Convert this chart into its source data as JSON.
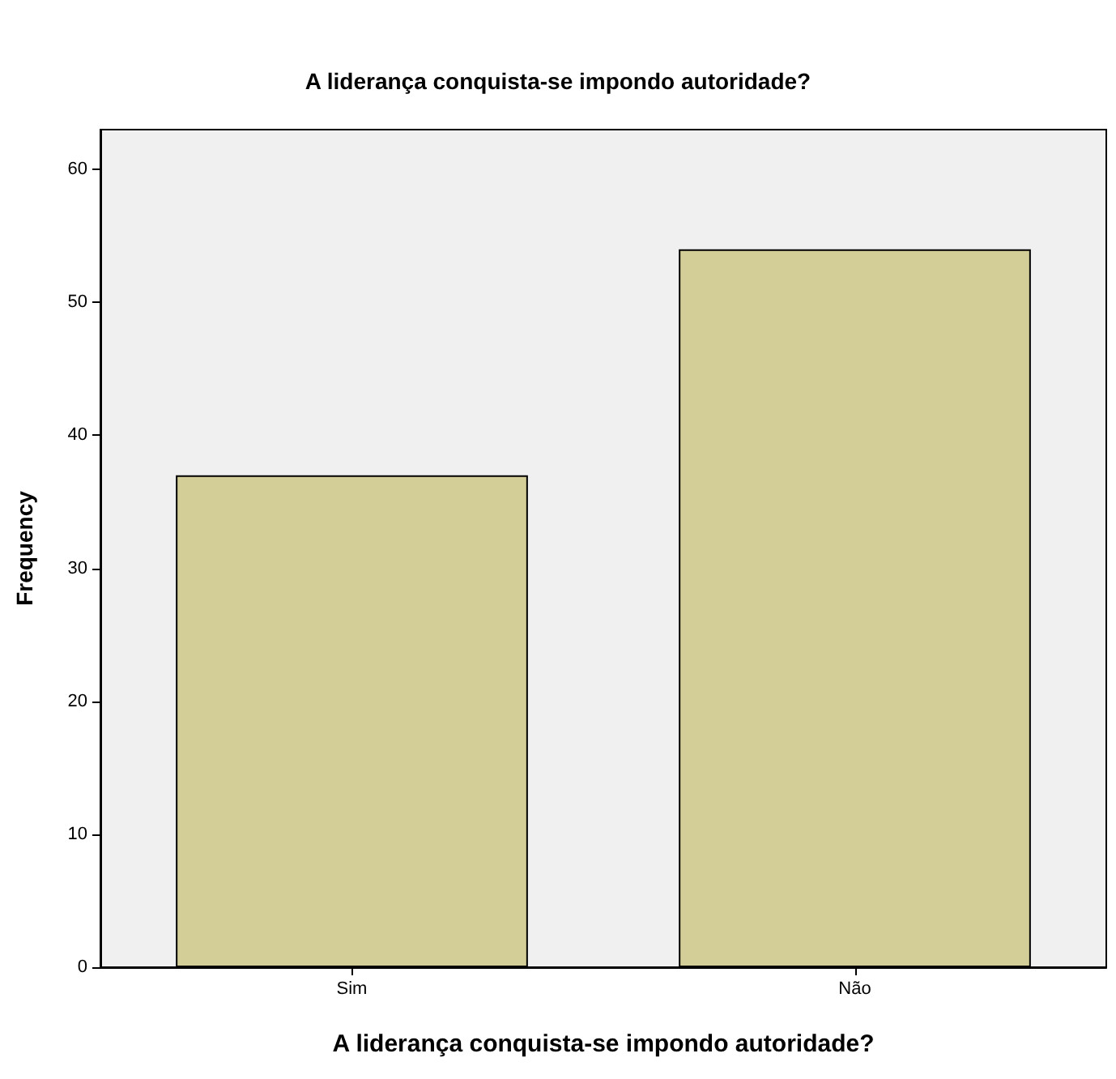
{
  "chart_data": {
    "type": "bar",
    "title": "A liderança conquista-se impondo autoridade?",
    "xlabel": "A liderança conquista-se impondo autoridade?",
    "ylabel": "Frequency",
    "categories": [
      "Sim",
      "Não"
    ],
    "values": [
      37,
      54
    ],
    "color": "#d3ce97",
    "ylim": [
      0,
      63
    ],
    "yticks": [
      0,
      10,
      20,
      30,
      40,
      50,
      60
    ],
    "grid": false
  }
}
